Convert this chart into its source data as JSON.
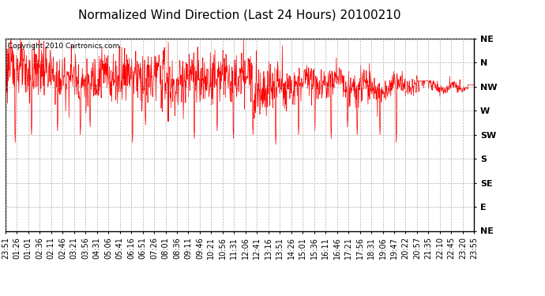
{
  "title": "Normalized Wind Direction (Last 24 Hours) 20100210",
  "copyright_text": "Copyright 2010 Cartronics.com",
  "line_color": "#ff0000",
  "background_color": "#ffffff",
  "grid_color": "#aaaaaa",
  "ytick_labels": [
    "NE",
    "N",
    "NW",
    "W",
    "SW",
    "S",
    "SE",
    "E",
    "NE"
  ],
  "ytick_values": [
    1.0,
    0.875,
    0.75,
    0.625,
    0.5,
    0.375,
    0.25,
    0.125,
    0.0
  ],
  "xtick_labels": [
    "23:51",
    "01:26",
    "01:01",
    "02:36",
    "02:11",
    "02:46",
    "03:21",
    "03:56",
    "04:31",
    "05:06",
    "05:41",
    "06:16",
    "06:51",
    "07:26",
    "08:01",
    "08:36",
    "09:11",
    "09:46",
    "10:21",
    "10:56",
    "11:31",
    "12:06",
    "12:41",
    "13:16",
    "13:51",
    "14:26",
    "15:01",
    "15:36",
    "16:11",
    "16:46",
    "17:21",
    "17:56",
    "18:31",
    "19:06",
    "19:47",
    "20:22",
    "20:57",
    "21:35",
    "22:10",
    "22:45",
    "23:20",
    "23:55"
  ],
  "ylim": [
    0.0,
    1.0
  ],
  "title_fontsize": 11,
  "axis_fontsize": 8,
  "label_fontsize": 7
}
